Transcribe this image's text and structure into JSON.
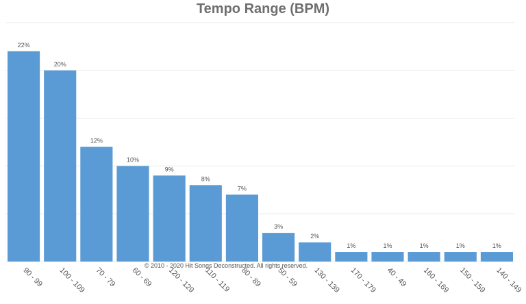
{
  "chart_data": {
    "type": "bar",
    "title": "Tempo Range (BPM)",
    "xlabel": "",
    "ylabel": "",
    "categories": [
      "90 - 99",
      "100 - 109",
      "70 - 79",
      "60 - 69",
      "120 - 129",
      "110 - 119",
      "80 - 89",
      "50 - 59",
      "130 - 139",
      "170 - 179",
      "40 - 49",
      "160 - 169",
      "150 - 159",
      "140 - 149"
    ],
    "values": [
      22,
      20,
      12,
      10,
      9,
      8,
      7,
      3,
      2,
      1,
      1,
      1,
      1,
      1
    ],
    "value_labels": [
      "22%",
      "20%",
      "12%",
      "10%",
      "9%",
      "8%",
      "7%",
      "3%",
      "2%",
      "1%",
      "1%",
      "1%",
      "1%",
      "1%"
    ],
    "ylim": [
      0,
      25
    ],
    "grid": true,
    "legend": "none",
    "bar_color": "#5b9bd5",
    "grid_color": "#e8e8e8",
    "label_color": "#555555"
  },
  "watermark": "© 2010 - 2020 Hit Songs Deconstructed. All rights reserved."
}
